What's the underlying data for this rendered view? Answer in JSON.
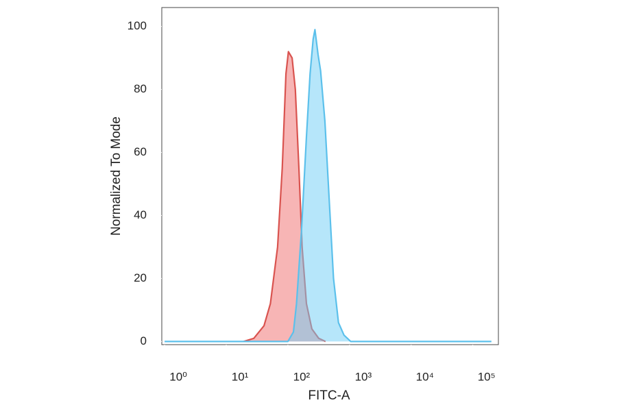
{
  "chart_data": {
    "type": "histogram-overlay",
    "x_label": "FITC-A",
    "y_label": "Normalized To Mode",
    "xscale": "log",
    "xlim": [
      0.9,
      260000
    ],
    "xticks": [
      {
        "value": 1,
        "label": "10⁰"
      },
      {
        "value": 10,
        "label": "10¹"
      },
      {
        "value": 100,
        "label": "10²"
      },
      {
        "value": 1000,
        "label": "10³"
      },
      {
        "value": 10000,
        "label": "10⁴"
      },
      {
        "value": 100000,
        "label": "10⁵"
      }
    ],
    "ylim": [
      -1,
      106
    ],
    "yticks": [
      0,
      20,
      40,
      60,
      80,
      100
    ],
    "series": [
      {
        "name": null,
        "color": "#d9534f",
        "fill": "rgba(240,120,120,0.55)",
        "x": [
          19,
          28,
          41,
          52,
          68,
          81,
          93,
          102,
          117,
          132,
          151,
          170,
          200,
          245,
          316,
          407
        ],
        "values": [
          0,
          1,
          5,
          12,
          30,
          55,
          85,
          92,
          90,
          80,
          55,
          30,
          12,
          4,
          1,
          0
        ]
      },
      {
        "name": null,
        "color": "#5bc0eb",
        "fill": "rgba(110,205,245,0.5)",
        "x": [
          1,
          100,
          123,
          138,
          166,
          200,
          229,
          257,
          275,
          309,
          339,
          398,
          468,
          550,
          661,
          813,
          1047,
          200000
        ],
        "values": [
          0,
          0,
          3,
          12,
          35,
          65,
          85,
          96,
          99,
          91,
          86,
          70,
          45,
          20,
          6,
          2,
          0,
          0
        ]
      }
    ]
  }
}
